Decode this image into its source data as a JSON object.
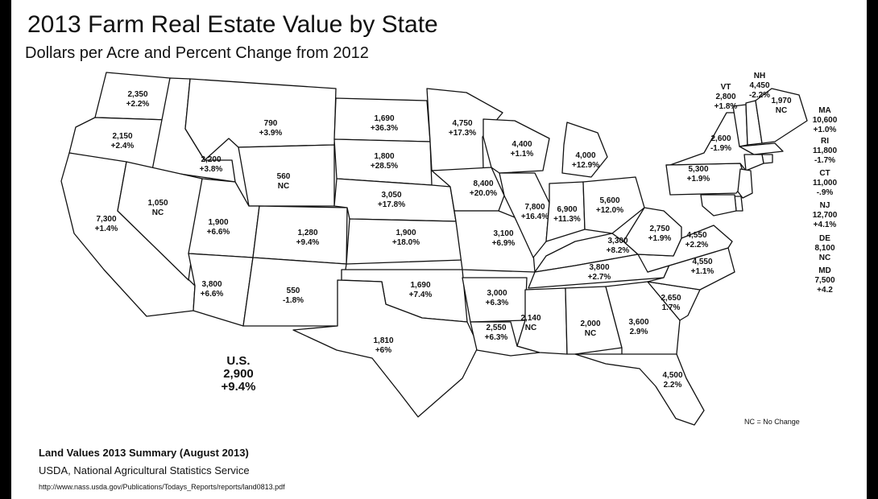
{
  "title": "2013 Farm Real Estate Value by State",
  "subtitle": "Dollars per Acre and Percent Change from 2012",
  "legend_note": "NC = No Change",
  "source": {
    "title": "Land Values 2013 Summary (August 2013)",
    "agency": "USDA, National Agricultural Statistics Service",
    "url": "http://www.nass.usda.gov/Publications/Todays_Reports/reports/land0813.pdf"
  },
  "us": {
    "label": "U.S.",
    "value": "2,900",
    "change": "+9.4%"
  },
  "states": {
    "WA": {
      "value": "2,350",
      "change": "+2.2%"
    },
    "OR": {
      "value": "2,150",
      "change": "+2.4%"
    },
    "CA": {
      "value": "7,300",
      "change": "+1.4%"
    },
    "ID": {
      "value": "2,200",
      "change": "+3.8%"
    },
    "NV": {
      "value": "1,050",
      "change": "NC"
    },
    "MT": {
      "value": "790",
      "change": "+3.9%"
    },
    "WY": {
      "value": "560",
      "change": "NC"
    },
    "UT": {
      "value": "1,900",
      "change": "+6.6%"
    },
    "CO": {
      "value": "1,280",
      "change": "+9.4%"
    },
    "AZ": {
      "value": "3,800",
      "change": "+6.6%"
    },
    "NM": {
      "value": "550",
      "change": "-1.8%"
    },
    "ND": {
      "value": "1,690",
      "change": "+36.3%"
    },
    "SD": {
      "value": "1,800",
      "change": "+28.5%"
    },
    "NE": {
      "value": "3,050",
      "change": "+17.8%"
    },
    "KS": {
      "value": "1,900",
      "change": "+18.0%"
    },
    "OK": {
      "value": "1,690",
      "change": "+7.4%"
    },
    "TX": {
      "value": "1,810",
      "change": "+6%"
    },
    "MN": {
      "value": "4,750",
      "change": "+17.3%"
    },
    "IA": {
      "value": "8,400",
      "change": "+20.0%"
    },
    "MO": {
      "value": "3,100",
      "change": "+6.9%"
    },
    "AR": {
      "value": "3,000",
      "change": "+6.3%"
    },
    "LA": {
      "value": "2,550",
      "change": "+6.3%"
    },
    "WI": {
      "value": "4,400",
      "change": "+1.1%"
    },
    "IL": {
      "value": "7,800",
      "change": "+16.4%"
    },
    "MI": {
      "value": "4,000",
      "change": "+12.9%"
    },
    "IN": {
      "value": "6,900",
      "change": "+11.3%"
    },
    "OH": {
      "value": "5,600",
      "change": "+12.0%"
    },
    "KY": {
      "value": "3,300",
      "change": "+8.2%"
    },
    "TN": {
      "value": "3,800",
      "change": "+2.7%"
    },
    "MS": {
      "value": "2,140",
      "change": "NC"
    },
    "AL": {
      "value": "2,000",
      "change": "NC"
    },
    "GA": {
      "value": "3,600",
      "change": "2.9%"
    },
    "FL": {
      "value": "4,500",
      "change": "2.2%"
    },
    "SC": {
      "value": "2,650",
      "change": "1.7%"
    },
    "NC": {
      "value": "4,550",
      "change": "+1.1%"
    },
    "VA": {
      "value": "4,550",
      "change": "+2.2%"
    },
    "WV": {
      "value": "2,750",
      "change": "+1.9%"
    },
    "PA": {
      "value": "5,300",
      "change": "+1.9%"
    },
    "NY": {
      "value": "2,600",
      "change": "-1.9%"
    },
    "VT": {
      "label": "VT",
      "value": "2,800",
      "change": "+1.8%"
    },
    "NH": {
      "label": "NH",
      "value": "4,450",
      "change": "-2.2%"
    },
    "ME": {
      "value": "1,970",
      "change": "NC"
    },
    "MA": {
      "label": "MA",
      "value": "10,600",
      "change": "+1.0%"
    },
    "RI": {
      "label": "RI",
      "value": "11,800",
      "change": "-1.7%"
    },
    "CT": {
      "label": "CT",
      "value": "11,000",
      "change": "-.9%"
    },
    "NJ": {
      "label": "NJ",
      "value": "12,700",
      "change": "+4.1%"
    },
    "DE": {
      "label": "DE",
      "value": "8,100",
      "change": "NC"
    },
    "MD": {
      "label": "MD",
      "value": "7,500",
      "change": "+4.2"
    }
  }
}
